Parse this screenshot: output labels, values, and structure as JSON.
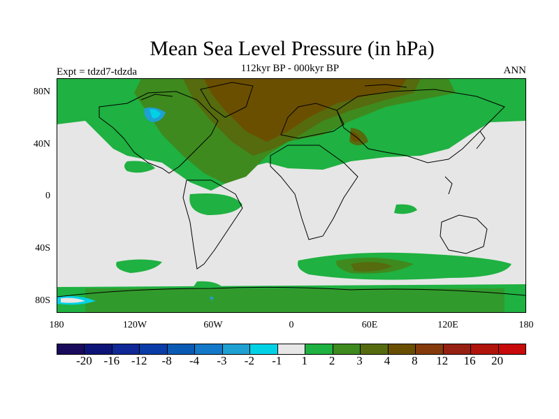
{
  "title": "Mean Sea Level Pressure (in hPa)",
  "subtitle": "112kyr BP - 000kyr BP",
  "left_label": "Expt = tdzd7-tdzda",
  "right_label": "ANN",
  "y_ticks": [
    "80N",
    "40N",
    "0",
    "40S",
    "80S"
  ],
  "x_ticks": [
    "180",
    "120W",
    "60W",
    "0",
    "60E",
    "120E",
    "180"
  ],
  "colorbar": {
    "colors": [
      "#1a0a5c",
      "#0c1478",
      "#0f2896",
      "#0a3ca8",
      "#0a5ab4",
      "#1478c8",
      "#1ea0d2",
      "#00d2e6",
      "#e6e6e6",
      "#1fb141",
      "#3e8a1e",
      "#556b0e",
      "#6b4f00",
      "#843a0a",
      "#962012",
      "#b0140a",
      "#c80a0a"
    ],
    "labels": [
      "-20",
      "-16",
      "-12",
      "-8",
      "-4",
      "-3",
      "-2",
      "-1",
      "1",
      "2",
      "3",
      "4",
      "8",
      "12",
      "16",
      "20"
    ]
  },
  "legend_colors": {
    "neutral": "#e6e6e6",
    "plus1": "#1fb141",
    "plus2": "#3e8a1e",
    "plus3": "#556b0e",
    "plus4": "#6b4f00",
    "minus1": "#00d2e6",
    "minus2": "#1ea0d2"
  }
}
